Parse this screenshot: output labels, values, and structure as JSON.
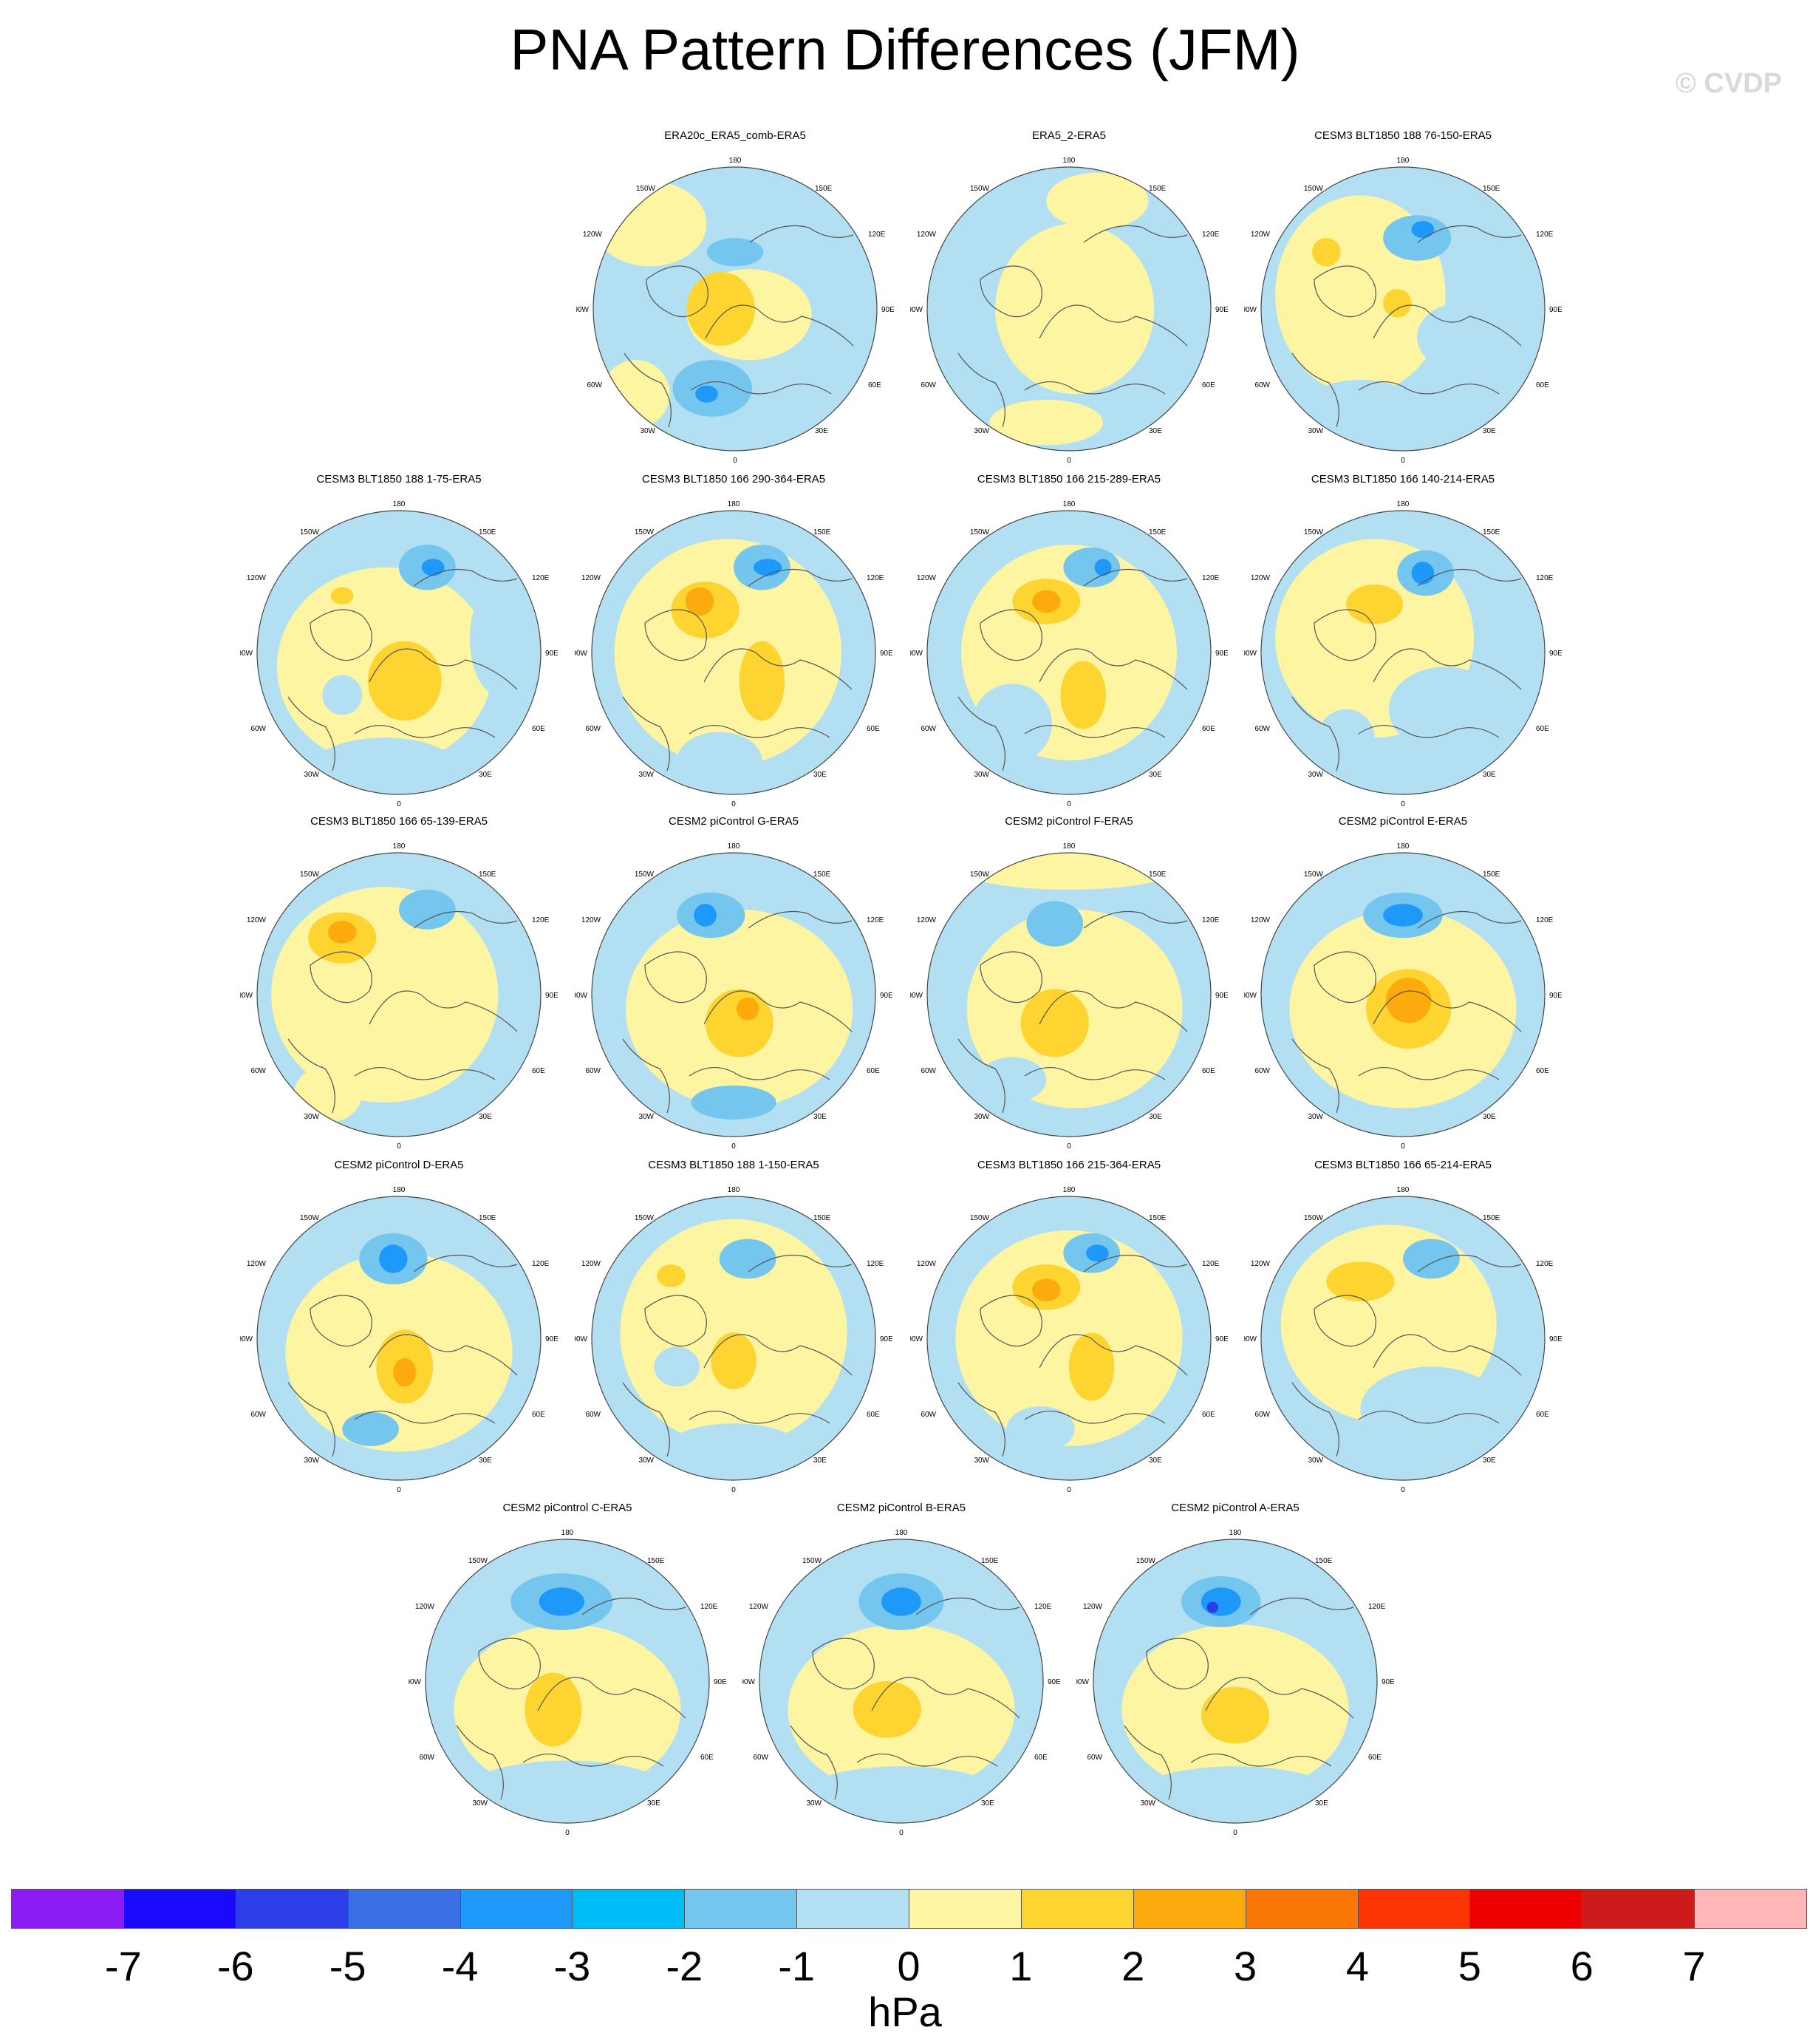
{
  "title": "PNA Pattern Differences (JFM)",
  "watermark": "© CVDP",
  "colorbar": {
    "units": "hPa",
    "labels": [
      "-7",
      "-6",
      "-5",
      "-4",
      "-3",
      "-2",
      "-1",
      "0",
      "1",
      "2",
      "3",
      "4",
      "5",
      "6",
      "7"
    ],
    "colors": [
      "#8b1cf3",
      "#1a0afb",
      "#2b3ee8",
      "#3b6fe6",
      "#1e99fa",
      "#00bdf8",
      "#74c6ef",
      "#b2e0f2",
      "#fdf5a1",
      "#fdd430",
      "#fdab0c",
      "#fc7806",
      "#fd3403",
      "#ec0000",
      "#cd1b1b",
      "#ffb6b6"
    ]
  },
  "graticule_labels": {
    "top": "180",
    "bottom": "0",
    "tl": "150W",
    "tr": "150E",
    "ul": "120W",
    "ur": "120E",
    "ml": "90W",
    "mr": "90E",
    "ll": "60W",
    "lr": "60E",
    "bl": "30W",
    "br": "30E"
  },
  "maps": [
    {
      "title": "ERA20c_ERA5_comb-ERA5",
      "blobs": [
        [
          0.55,
          0.52,
          0.22,
          0.16,
          "#fdf5a1"
        ],
        [
          0.45,
          0.5,
          0.12,
          0.13,
          "#fdd430"
        ],
        [
          0.42,
          0.78,
          0.14,
          0.1,
          "#74c6ef"
        ],
        [
          0.4,
          0.8,
          0.04,
          0.03,
          "#1e99fa"
        ],
        [
          0.5,
          0.3,
          0.1,
          0.05,
          "#74c6ef"
        ],
        [
          0.2,
          0.2,
          0.2,
          0.15,
          "#fdf5a1"
        ],
        [
          0.15,
          0.8,
          0.12,
          0.12,
          "#fdf5a1"
        ]
      ]
    },
    {
      "title": "ERA5_2-ERA5",
      "blobs": [
        [
          0.52,
          0.5,
          0.28,
          0.3,
          "#fdf5a1"
        ],
        [
          0.6,
          0.12,
          0.18,
          0.1,
          "#fdf5a1"
        ],
        [
          0.42,
          0.9,
          0.2,
          0.08,
          "#fdf5a1"
        ]
      ]
    },
    {
      "title": "CESM3 BLT1850 188 76-150-ERA5",
      "blobs": [
        [
          0.35,
          0.45,
          0.3,
          0.35,
          "#fdf5a1"
        ],
        [
          0.55,
          0.25,
          0.12,
          0.08,
          "#74c6ef"
        ],
        [
          0.57,
          0.22,
          0.04,
          0.03,
          "#1e99fa"
        ],
        [
          0.23,
          0.3,
          0.05,
          0.05,
          "#fdd430"
        ],
        [
          0.48,
          0.48,
          0.05,
          0.05,
          "#fdd430"
        ],
        [
          0.7,
          0.6,
          0.15,
          0.12,
          "#b2e0f2"
        ],
        [
          0.35,
          0.85,
          0.2,
          0.1,
          "#b2e0f2"
        ]
      ]
    },
    {
      "title": "CESM3 BLT1850 188 1-75-ERA5",
      "blobs": [
        [
          0.45,
          0.55,
          0.38,
          0.35,
          "#fdf5a1"
        ],
        [
          0.52,
          0.6,
          0.13,
          0.14,
          "#fdd430"
        ],
        [
          0.6,
          0.2,
          0.1,
          0.08,
          "#74c6ef"
        ],
        [
          0.62,
          0.2,
          0.04,
          0.03,
          "#1e99fa"
        ],
        [
          0.3,
          0.3,
          0.04,
          0.03,
          "#fdd430"
        ],
        [
          0.3,
          0.65,
          0.07,
          0.07,
          "#b2e0f2"
        ],
        [
          0.45,
          0.9,
          0.25,
          0.1,
          "#b2e0f2"
        ],
        [
          0.85,
          0.45,
          0.1,
          0.2,
          "#b2e0f2"
        ]
      ]
    },
    {
      "title": "CESM3 BLT1850 166 290-364-ERA5",
      "blobs": [
        [
          0.48,
          0.5,
          0.4,
          0.4,
          "#fdf5a1"
        ],
        [
          0.4,
          0.35,
          0.12,
          0.1,
          "#fdd430"
        ],
        [
          0.38,
          0.32,
          0.05,
          0.05,
          "#fdab0c"
        ],
        [
          0.6,
          0.6,
          0.08,
          0.14,
          "#fdd430"
        ],
        [
          0.6,
          0.2,
          0.1,
          0.08,
          "#74c6ef"
        ],
        [
          0.62,
          0.2,
          0.05,
          0.03,
          "#1e99fa"
        ],
        [
          0.45,
          0.88,
          0.15,
          0.1,
          "#b2e0f2"
        ]
      ]
    },
    {
      "title": "CESM3 BLT1850 166 215-289-ERA5",
      "blobs": [
        [
          0.5,
          0.5,
          0.38,
          0.38,
          "#fdf5a1"
        ],
        [
          0.42,
          0.32,
          0.12,
          0.08,
          "#fdd430"
        ],
        [
          0.42,
          0.32,
          0.05,
          0.04,
          "#fdab0c"
        ],
        [
          0.55,
          0.65,
          0.08,
          0.12,
          "#fdd430"
        ],
        [
          0.58,
          0.2,
          0.1,
          0.07,
          "#74c6ef"
        ],
        [
          0.62,
          0.2,
          0.03,
          0.03,
          "#1e99fa"
        ],
        [
          0.3,
          0.75,
          0.14,
          0.14,
          "#b2e0f2"
        ]
      ]
    },
    {
      "title": "CESM3 BLT1850 166 140-214-ERA5",
      "blobs": [
        [
          0.4,
          0.45,
          0.35,
          0.35,
          "#fdf5a1"
        ],
        [
          0.4,
          0.33,
          0.1,
          0.07,
          "#fdd430"
        ],
        [
          0.58,
          0.22,
          0.1,
          0.08,
          "#74c6ef"
        ],
        [
          0.57,
          0.22,
          0.04,
          0.04,
          "#1e99fa"
        ],
        [
          0.65,
          0.7,
          0.2,
          0.15,
          "#b2e0f2"
        ],
        [
          0.3,
          0.8,
          0.1,
          0.1,
          "#b2e0f2"
        ]
      ]
    },
    {
      "title": "CESM3 BLT1850 166 65-139-ERA5",
      "blobs": [
        [
          0.45,
          0.5,
          0.4,
          0.38,
          "#fdf5a1"
        ],
        [
          0.3,
          0.3,
          0.12,
          0.09,
          "#fdd430"
        ],
        [
          0.3,
          0.28,
          0.05,
          0.04,
          "#fdab0c"
        ],
        [
          0.6,
          0.2,
          0.1,
          0.07,
          "#74c6ef"
        ],
        [
          0.25,
          0.85,
          0.12,
          0.1,
          "#fdf5a1"
        ]
      ]
    },
    {
      "title": "CESM2 piControl G-ERA5",
      "blobs": [
        [
          0.52,
          0.55,
          0.4,
          0.35,
          "#fdf5a1"
        ],
        [
          0.52,
          0.6,
          0.12,
          0.12,
          "#fdd430"
        ],
        [
          0.55,
          0.55,
          0.04,
          0.04,
          "#fdab0c"
        ],
        [
          0.42,
          0.22,
          0.12,
          0.08,
          "#74c6ef"
        ],
        [
          0.4,
          0.22,
          0.04,
          0.04,
          "#1e99fa"
        ],
        [
          0.5,
          0.88,
          0.15,
          0.06,
          "#74c6ef"
        ]
      ]
    },
    {
      "title": "CESM2 piControl F-ERA5",
      "blobs": [
        [
          0.52,
          0.55,
          0.38,
          0.35,
          "#fdf5a1"
        ],
        [
          0.45,
          0.6,
          0.12,
          0.12,
          "#fdd430"
        ],
        [
          0.45,
          0.25,
          0.1,
          0.08,
          "#74c6ef"
        ],
        [
          0.5,
          0.05,
          0.4,
          0.08,
          "#fdf5a1"
        ],
        [
          0.3,
          0.8,
          0.12,
          0.08,
          "#b2e0f2"
        ]
      ]
    },
    {
      "title": "CESM2 piControl E-ERA5",
      "blobs": [
        [
          0.5,
          0.55,
          0.4,
          0.35,
          "#fdf5a1"
        ],
        [
          0.52,
          0.55,
          0.15,
          0.14,
          "#fdd430"
        ],
        [
          0.52,
          0.52,
          0.08,
          0.08,
          "#fdab0c"
        ],
        [
          0.5,
          0.22,
          0.14,
          0.08,
          "#74c6ef"
        ],
        [
          0.5,
          0.22,
          0.07,
          0.04,
          "#1e99fa"
        ],
        [
          0.4,
          0.85,
          0.05,
          0.04,
          "#fdf5a1"
        ]
      ]
    },
    {
      "title": "CESM2 piControl D-ERA5",
      "blobs": [
        [
          0.5,
          0.55,
          0.4,
          0.35,
          "#fdf5a1"
        ],
        [
          0.52,
          0.6,
          0.1,
          0.13,
          "#fdd430"
        ],
        [
          0.52,
          0.62,
          0.04,
          0.05,
          "#fdab0c"
        ],
        [
          0.48,
          0.22,
          0.12,
          0.09,
          "#74c6ef"
        ],
        [
          0.48,
          0.22,
          0.05,
          0.05,
          "#1e99fa"
        ],
        [
          0.4,
          0.82,
          0.1,
          0.06,
          "#74c6ef"
        ]
      ]
    },
    {
      "title": "CESM3 BLT1850 188 1-150-ERA5",
      "blobs": [
        [
          0.5,
          0.48,
          0.4,
          0.4,
          "#fdf5a1"
        ],
        [
          0.5,
          0.58,
          0.08,
          0.1,
          "#fdd430"
        ],
        [
          0.55,
          0.22,
          0.1,
          0.07,
          "#74c6ef"
        ],
        [
          0.28,
          0.28,
          0.05,
          0.04,
          "#fdd430"
        ],
        [
          0.3,
          0.6,
          0.08,
          0.07,
          "#b2e0f2"
        ],
        [
          0.5,
          0.9,
          0.25,
          0.1,
          "#b2e0f2"
        ]
      ]
    },
    {
      "title": "CESM3 BLT1850 166 215-364-ERA5",
      "blobs": [
        [
          0.5,
          0.5,
          0.4,
          0.38,
          "#fdf5a1"
        ],
        [
          0.42,
          0.32,
          0.12,
          0.08,
          "#fdd430"
        ],
        [
          0.42,
          0.33,
          0.05,
          0.04,
          "#fdab0c"
        ],
        [
          0.58,
          0.6,
          0.08,
          0.12,
          "#fdd430"
        ],
        [
          0.58,
          0.2,
          0.1,
          0.07,
          "#74c6ef"
        ],
        [
          0.6,
          0.2,
          0.04,
          0.03,
          "#1e99fa"
        ],
        [
          0.4,
          0.82,
          0.12,
          0.08,
          "#b2e0f2"
        ]
      ]
    },
    {
      "title": "CESM3 BLT1850 166 65-214-ERA5",
      "blobs": [
        [
          0.45,
          0.45,
          0.38,
          0.35,
          "#fdf5a1"
        ],
        [
          0.35,
          0.3,
          0.12,
          0.07,
          "#fdd430"
        ],
        [
          0.6,
          0.22,
          0.1,
          0.07,
          "#74c6ef"
        ],
        [
          0.6,
          0.75,
          0.25,
          0.15,
          "#b2e0f2"
        ]
      ]
    },
    {
      "title": "CESM2 piControl C-ERA5",
      "blobs": [
        [
          0.5,
          0.6,
          0.4,
          0.3,
          "#fdf5a1"
        ],
        [
          0.45,
          0.6,
          0.1,
          0.13,
          "#fdd430"
        ],
        [
          0.48,
          0.22,
          0.18,
          0.1,
          "#74c6ef"
        ],
        [
          0.48,
          0.22,
          0.08,
          0.05,
          "#1e99fa"
        ],
        [
          0.5,
          0.88,
          0.35,
          0.1,
          "#b2e0f2"
        ]
      ]
    },
    {
      "title": "CESM2 piControl B-ERA5",
      "blobs": [
        [
          0.5,
          0.6,
          0.4,
          0.3,
          "#fdf5a1"
        ],
        [
          0.45,
          0.6,
          0.12,
          0.1,
          "#fdd430"
        ],
        [
          0.5,
          0.22,
          0.15,
          0.1,
          "#74c6ef"
        ],
        [
          0.5,
          0.22,
          0.07,
          0.05,
          "#1e99fa"
        ],
        [
          0.5,
          0.9,
          0.35,
          0.1,
          "#b2e0f2"
        ]
      ]
    },
    {
      "title": "CESM2 piControl A-ERA5",
      "blobs": [
        [
          0.5,
          0.6,
          0.4,
          0.3,
          "#fdf5a1"
        ],
        [
          0.5,
          0.62,
          0.12,
          0.1,
          "#fdd430"
        ],
        [
          0.45,
          0.22,
          0.14,
          0.09,
          "#74c6ef"
        ],
        [
          0.45,
          0.22,
          0.07,
          0.05,
          "#1e99fa"
        ],
        [
          0.42,
          0.24,
          0.02,
          0.02,
          "#2b3ee8"
        ],
        [
          0.5,
          0.9,
          0.35,
          0.1,
          "#b2e0f2"
        ]
      ]
    }
  ]
}
